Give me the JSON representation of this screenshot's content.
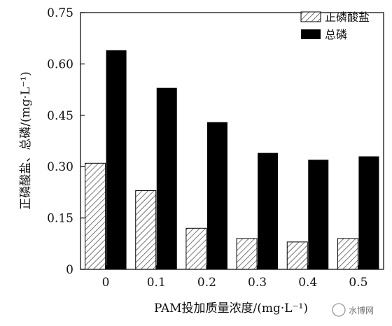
{
  "chart_data": {
    "type": "bar",
    "categories": [
      "0",
      "0.1",
      "0.2",
      "0.3",
      "0.4",
      "0.5"
    ],
    "series": [
      {
        "name": "正磷酸盐",
        "values": [
          0.31,
          0.23,
          0.12,
          0.09,
          0.08,
          0.09
        ],
        "color": "#bdbdbd",
        "pattern": "hatched"
      },
      {
        "name": "总磷",
        "values": [
          0.64,
          0.53,
          0.43,
          0.34,
          0.32,
          0.33
        ],
        "color": "#000000"
      }
    ],
    "xlabel": "PAM投加质量浓度/(mg·L⁻¹)",
    "ylabel": "正磷酸盐、总磷/(mg·L⁻¹)",
    "ylim": [
      0,
      0.75
    ],
    "yticks": [
      "0",
      "0.15",
      "0.30",
      "0.45",
      "0.60",
      "0.75"
    ],
    "grid": false,
    "legend": "top-right"
  },
  "watermark": {
    "text": "水博网"
  }
}
